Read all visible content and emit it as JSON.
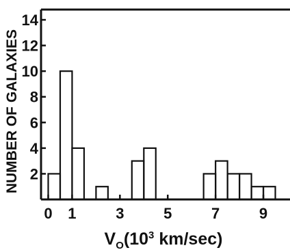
{
  "chart_data": {
    "type": "bar",
    "histogram": true,
    "bin_width": 0.5,
    "x_bins_start": [
      0,
      0.5,
      1.0,
      1.5,
      2.0,
      2.5,
      3.0,
      3.5,
      4.0,
      4.5,
      5.0,
      5.5,
      6.0,
      6.5,
      7.0,
      7.5,
      8.0,
      8.5,
      9.0,
      9.5
    ],
    "values": [
      2,
      10,
      4,
      0,
      1,
      0,
      0,
      3,
      4,
      0,
      0,
      0,
      0,
      2,
      3,
      2,
      2,
      1,
      1,
      0
    ],
    "xlabel_parts": {
      "base": "V",
      "sub": "O",
      "open": "(10",
      "sup": "3",
      "close": " km/sec)"
    },
    "ylabel": "NUMBER OF GALAXIES",
    "xticks": [
      "0",
      "1",
      "3",
      "5",
      "7",
      "9"
    ],
    "xtick_values": [
      0,
      1,
      3,
      5,
      7,
      9
    ],
    "yticks": [
      "2",
      "4",
      "6",
      "8",
      "10",
      "12",
      "14"
    ],
    "ytick_values": [
      2,
      4,
      6,
      8,
      10,
      12,
      14
    ],
    "xlim": [
      -0.3,
      10.0
    ],
    "ylim": [
      0,
      14.8
    ],
    "grid": false
  }
}
